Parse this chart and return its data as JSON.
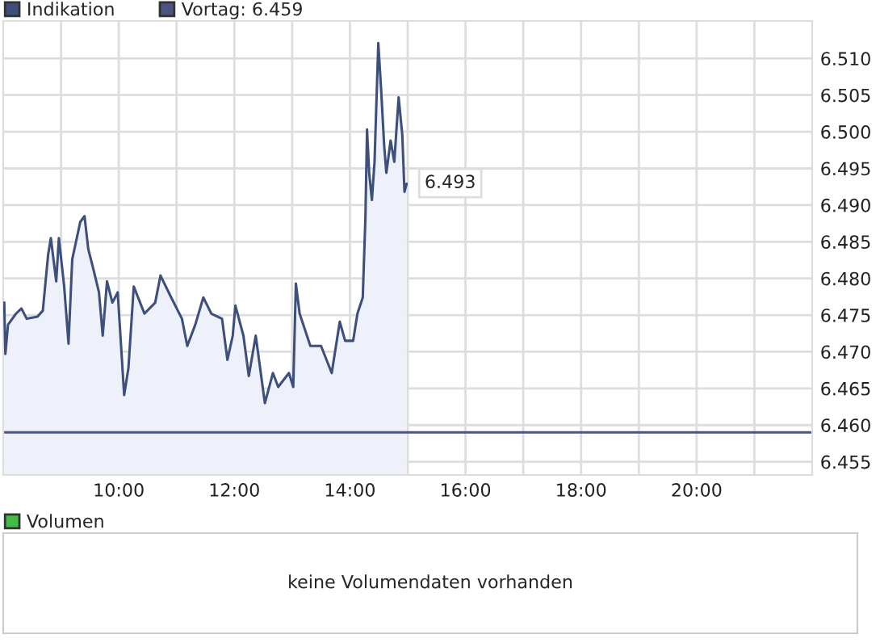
{
  "chart_data": [
    {
      "type": "area",
      "x": [
        8.018,
        8.037,
        8.083,
        8.222,
        8.315,
        8.407,
        8.593,
        8.685,
        8.778,
        8.824,
        8.917,
        8.963,
        9.055,
        9.13,
        9.194,
        9.333,
        9.407,
        9.472,
        9.565,
        9.657,
        9.722,
        9.796,
        9.889,
        9.981,
        10.093,
        10.167,
        10.259,
        10.444,
        10.63,
        10.722,
        10.907,
        11.093,
        11.185,
        11.324,
        11.463,
        11.602,
        11.787,
        11.88,
        11.972,
        12.018,
        12.157,
        12.25,
        12.37,
        12.528,
        12.667,
        12.759,
        12.944,
        13.019,
        13.065,
        13.13,
        13.315,
        13.5,
        13.685,
        13.824,
        13.917,
        14.056,
        14.13,
        14.222,
        14.269,
        14.296,
        14.333,
        14.38,
        14.426,
        14.491,
        14.537,
        14.593,
        14.63,
        14.704,
        14.768,
        14.843,
        14.907,
        14.944,
        14.981
      ],
      "series": [
        {
          "name": "Indikation",
          "color": "#3d4f7a",
          "values": [
            6.4767,
            6.4697,
            6.4737,
            6.4752,
            6.4759,
            6.4745,
            6.4748,
            6.4756,
            6.4833,
            6.4855,
            6.4796,
            6.4855,
            6.4789,
            6.4711,
            6.4826,
            6.4877,
            6.4885,
            6.484,
            6.4811,
            6.4781,
            6.4722,
            6.4796,
            6.4767,
            6.4781,
            6.4641,
            6.4678,
            6.4789,
            6.4752,
            6.4767,
            6.4804,
            6.4774,
            6.4745,
            6.4708,
            6.4737,
            6.4774,
            6.4752,
            6.4745,
            6.4689,
            6.4722,
            6.4763,
            6.4722,
            6.4667,
            6.4722,
            6.463,
            6.4671,
            6.4652,
            6.4671,
            6.4652,
            6.4793,
            6.4752,
            6.4708,
            6.4708,
            6.4671,
            6.4741,
            6.4715,
            6.4715,
            6.4752,
            6.4774,
            6.4885,
            6.5003,
            6.4944,
            6.4907,
            6.4959,
            6.5121,
            6.5062,
            6.4981,
            6.4944,
            6.4988,
            6.4959,
            6.5047,
            6.4995,
            6.4918,
            6.4929
          ]
        }
      ],
      "ref_lines": [
        {
          "axis": "y",
          "value": 6.459,
          "label": "Vortag: 6.459",
          "color": "#4a5580"
        }
      ],
      "annotations": [
        {
          "text": "6.493",
          "x": 14.981,
          "y": 6.493
        }
      ],
      "xlim": [
        8,
        22
      ],
      "xticks": [
        {
          "value": 9,
          "label": null
        },
        {
          "value": 10,
          "label": "10:00"
        },
        {
          "value": 11,
          "label": null
        },
        {
          "value": 12,
          "label": "12:00"
        },
        {
          "value": 13,
          "label": null
        },
        {
          "value": 14,
          "label": "14:00"
        },
        {
          "value": 15,
          "label": null
        },
        {
          "value": 16,
          "label": "16:00"
        },
        {
          "value": 17,
          "label": null
        },
        {
          "value": 18,
          "label": "18:00"
        },
        {
          "value": 19,
          "label": null
        },
        {
          "value": 20,
          "label": "20:00"
        },
        {
          "value": 21,
          "label": null
        }
      ],
      "ylim": [
        6.4532,
        6.5151
      ],
      "yticks": [
        {
          "value": 6.455,
          "label": "6.455"
        },
        {
          "value": 6.46,
          "label": "6.460"
        },
        {
          "value": 6.465,
          "label": "6.465"
        },
        {
          "value": 6.47,
          "label": "6.470"
        },
        {
          "value": 6.475,
          "label": "6.475"
        },
        {
          "value": 6.48,
          "label": "6.480"
        },
        {
          "value": 6.485,
          "label": "6.485"
        },
        {
          "value": 6.49,
          "label": "6.490"
        },
        {
          "value": 6.495,
          "label": "6.495"
        },
        {
          "value": 6.5,
          "label": "6.500"
        },
        {
          "value": 6.505,
          "label": "6.505"
        },
        {
          "value": 6.51,
          "label": "6.510"
        }
      ],
      "grid": true,
      "legend": "top left"
    },
    {
      "type": "other",
      "series": [
        {
          "name": "Volumen",
          "color": "#44bb44"
        }
      ],
      "annotations": [
        "keine Volumendaten vorhanden"
      ],
      "legend": "top left"
    }
  ]
}
